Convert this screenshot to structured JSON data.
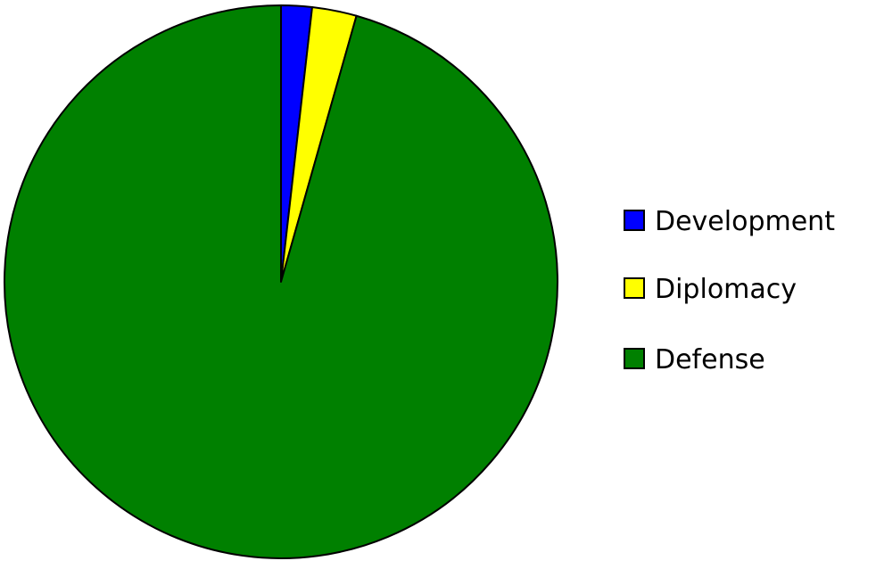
{
  "chart_data": {
    "type": "pie",
    "title": "",
    "legend_position": "right",
    "slices": [
      {
        "label": "Development",
        "value": 1.8,
        "color": "#0000ff"
      },
      {
        "label": "Diplomacy",
        "value": 2.6,
        "color": "#ffff00"
      },
      {
        "label": "Defense",
        "value": 95.6,
        "color": "#008000"
      }
    ]
  }
}
